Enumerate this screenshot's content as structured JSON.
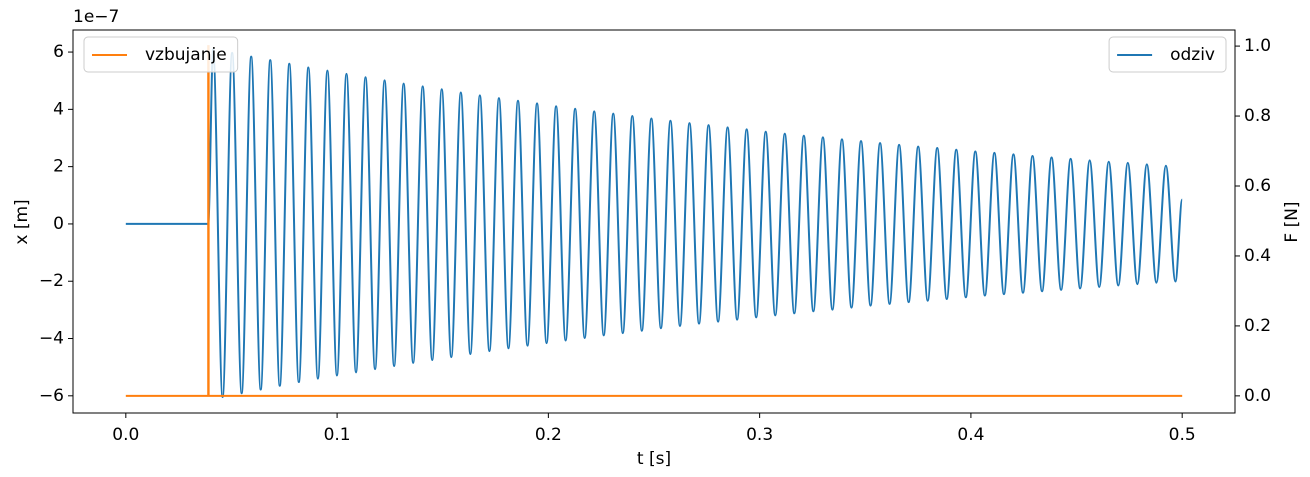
{
  "chart_data": {
    "type": "line",
    "offset_text": "1e−7",
    "xlabel": "t [s]",
    "ylabel": "x [m]",
    "y2label": "F [N]",
    "xlim": [
      -0.025,
      0.525
    ],
    "xticks": [
      {
        "value": 0,
        "label": "0.0"
      },
      0.1,
      0.2,
      0.3,
      0.4,
      0.5
    ],
    "ylim": [
      -6.6,
      6.77
    ],
    "yticks": [
      {
        "value": -6,
        "label": "−6"
      },
      {
        "value": -4,
        "label": "−4"
      },
      {
        "value": -2,
        "label": "−2"
      },
      0,
      2,
      4,
      6
    ],
    "y2lim": [
      -0.049,
      1.046
    ],
    "y2ticks": [
      {
        "value": 0,
        "label": "0.0"
      },
      0.2,
      0.4,
      0.6,
      0.8,
      {
        "value": 1,
        "label": "1.0"
      }
    ],
    "series": [
      {
        "name": "odziv",
        "color": "#1f77b4",
        "axis": "y",
        "legend_loc": "upper right",
        "x": [
          0,
          0.039,
          0.0413,
          0.04581,
          0.05032,
          0.05483,
          0.05934,
          0.06385,
          0.06836,
          0.07287,
          0.07738,
          0.08189,
          0.0864,
          0.09091,
          0.09542,
          0.09993,
          0.10444,
          0.10895,
          0.11346,
          0.11797,
          0.12248,
          0.12699,
          0.1315,
          0.13601,
          0.14052,
          0.14503,
          0.14954,
          0.15405,
          0.15856,
          0.16307,
          0.16758,
          0.17209,
          0.1766,
          0.18111,
          0.18562,
          0.19013,
          0.19464,
          0.19915,
          0.20366,
          0.20817,
          0.21268,
          0.21719,
          0.2217,
          0.22621,
          0.23072,
          0.23523,
          0.23974,
          0.24425,
          0.24876,
          0.25327,
          0.25778,
          0.26229,
          0.2668,
          0.27131,
          0.27582,
          0.28033,
          0.28484,
          0.28935,
          0.29386,
          0.29837,
          0.30288,
          0.30739,
          0.3119,
          0.31641,
          0.32092,
          0.32543,
          0.32994,
          0.33445,
          0.33896,
          0.34347,
          0.34798,
          0.35249,
          0.357,
          0.36151,
          0.36602,
          0.37053,
          0.37504,
          0.37955,
          0.38406,
          0.38857,
          0.39308,
          0.39759,
          0.4021,
          0.40661,
          0.41112,
          0.41563,
          0.42014,
          0.42465,
          0.42916,
          0.43367,
          0.43818,
          0.44269,
          0.4472,
          0.45171,
          0.45622,
          0.46073,
          0.46524,
          0.46975,
          0.47426,
          0.47877,
          0.48328,
          0.48779,
          0.4923,
          0.49681,
          0.5
        ],
        "values": [
          0,
          0,
          6.1,
          -6.04,
          5.97,
          -5.91,
          5.84,
          -5.78,
          5.72,
          -5.65,
          5.59,
          -5.52,
          5.46,
          -5.4,
          5.35,
          -5.29,
          5.24,
          -5.18,
          5.12,
          -5.07,
          5.01,
          -4.96,
          4.9,
          -4.85,
          4.8,
          -4.75,
          4.7,
          -4.65,
          4.59,
          -4.54,
          4.49,
          -4.44,
          4.39,
          -4.34,
          4.3,
          -4.25,
          4.21,
          -4.16,
          4.11,
          -4.07,
          4.02,
          -3.98,
          3.93,
          -3.89,
          3.85,
          -3.81,
          3.77,
          -3.73,
          3.68,
          -3.64,
          3.6,
          -3.56,
          3.52,
          -3.48,
          3.45,
          -3.41,
          3.37,
          -3.34,
          3.3,
          -3.26,
          3.22,
          -3.19,
          3.15,
          -3.12,
          3.08,
          -3.05,
          3.02,
          -2.99,
          2.95,
          -2.92,
          2.89,
          -2.85,
          2.82,
          -2.79,
          2.76,
          -2.73,
          2.7,
          -2.68,
          2.65,
          -2.62,
          2.59,
          -2.56,
          2.53,
          -2.5,
          2.48,
          -2.45,
          2.43,
          -2.4,
          2.37,
          -2.35,
          2.32,
          -2.3,
          2.27,
          -2.25,
          2.22,
          -2.2,
          2.17,
          -2.15,
          2.13,
          -2.1,
          2.08,
          -2.05,
          2.03,
          -2.01,
          0.85
        ]
      },
      {
        "name": "vzbujanje",
        "color": "#ff7f0e",
        "axis": "y2",
        "legend_loc": "upper left",
        "x": [
          0,
          0.039,
          0.039,
          0.0392,
          0.0392,
          0.5
        ],
        "values": [
          0,
          0,
          1,
          1,
          0,
          0
        ]
      }
    ]
  }
}
